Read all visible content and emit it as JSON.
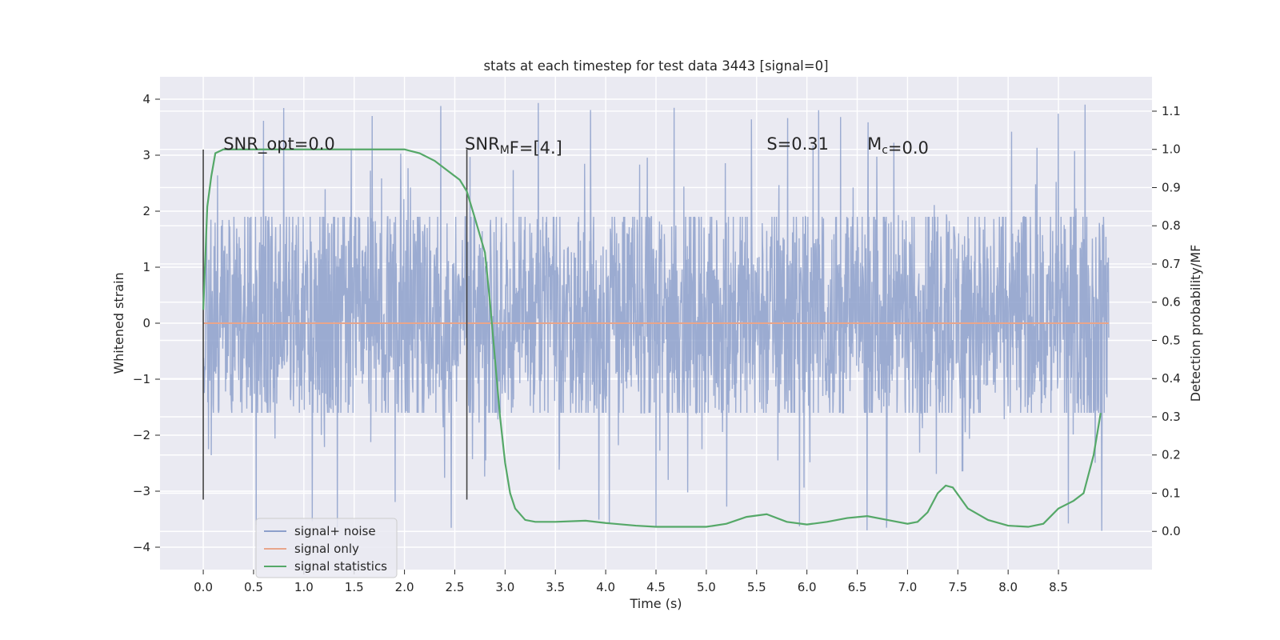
{
  "chart_data": {
    "type": "line",
    "title": "stats at each timestep for test data 3443 [signal=0]",
    "xlabel": "Time (s)",
    "ylabel": "Whitened strain",
    "y2label": "Detection probability/MF",
    "xlim": [
      -0.43,
      9.43
    ],
    "ylim": [
      -4.4,
      4.4
    ],
    "y2lim": [
      -0.1,
      1.19
    ],
    "xticks": [
      0.0,
      0.5,
      1.0,
      1.5,
      2.0,
      2.5,
      3.0,
      3.5,
      4.0,
      4.5,
      5.0,
      5.5,
      6.0,
      6.5,
      7.0,
      7.5,
      8.0,
      8.5
    ],
    "xtick_labels": [
      "0.0",
      "0.5",
      "1.0",
      "1.5",
      "2.0",
      "2.5",
      "3.0",
      "3.5",
      "4.0",
      "4.5",
      "5.0",
      "5.5",
      "6.0",
      "6.5",
      "7.0",
      "7.5",
      "8.0",
      "8.5"
    ],
    "yticks": [
      -4,
      -3,
      -2,
      -1,
      0,
      1,
      2,
      3,
      4
    ],
    "ytick_labels": [
      "−4",
      "−3",
      "−2",
      "−1",
      "0",
      "1",
      "2",
      "3",
      "4"
    ],
    "y2ticks": [
      0.0,
      0.1,
      0.2,
      0.3,
      0.4,
      0.5,
      0.6,
      0.7,
      0.8,
      0.9,
      1.0,
      1.1
    ],
    "y2tick_labels": [
      "0.0",
      "0.1",
      "0.2",
      "0.3",
      "0.4",
      "0.5",
      "0.6",
      "0.7",
      "0.8",
      "0.9",
      "1.0",
      "1.1"
    ],
    "series": [
      {
        "name": "signal+ noise",
        "color": "#8da0cb",
        "axis": "left",
        "x_range": [
          0.0,
          9.0
        ],
        "typical_envelope": [
          -1.6,
          1.9
        ],
        "peak_range": [
          -3.85,
          3.95
        ],
        "seed": 3443
      },
      {
        "name": "signal only",
        "color": "#e8a58b",
        "axis": "left",
        "x": [
          0.0,
          9.0
        ],
        "y": [
          0.0,
          0.0
        ]
      },
      {
        "name": "signal statistics",
        "color": "#55a868",
        "axis": "right",
        "x": [
          0.0,
          0.04,
          0.08,
          0.12,
          0.2,
          0.3,
          0.5,
          1.0,
          1.5,
          2.0,
          2.15,
          2.3,
          2.45,
          2.55,
          2.62,
          2.7,
          2.8,
          2.85,
          2.9,
          2.95,
          3.0,
          3.05,
          3.1,
          3.2,
          3.3,
          3.5,
          3.8,
          4.0,
          4.3,
          4.5,
          4.8,
          5.0,
          5.2,
          5.4,
          5.6,
          5.8,
          6.0,
          6.2,
          6.4,
          6.6,
          6.8,
          7.0,
          7.1,
          7.2,
          7.3,
          7.38,
          7.45,
          7.6,
          7.8,
          8.0,
          8.2,
          8.35,
          8.5,
          8.65,
          8.75,
          8.85,
          8.92
        ],
        "y": [
          0.58,
          0.85,
          0.93,
          0.99,
          1.0,
          1.0,
          1.0,
          1.0,
          1.0,
          1.0,
          0.99,
          0.97,
          0.94,
          0.92,
          0.89,
          0.82,
          0.73,
          0.6,
          0.45,
          0.3,
          0.18,
          0.1,
          0.06,
          0.03,
          0.025,
          0.025,
          0.028,
          0.022,
          0.015,
          0.012,
          0.012,
          0.012,
          0.02,
          0.038,
          0.045,
          0.025,
          0.018,
          0.025,
          0.035,
          0.04,
          0.03,
          0.02,
          0.025,
          0.05,
          0.1,
          0.12,
          0.115,
          0.06,
          0.03,
          0.015,
          0.012,
          0.02,
          0.06,
          0.08,
          0.1,
          0.2,
          0.31
        ]
      }
    ],
    "vlines": [
      0.0,
      2.62
    ],
    "vline_range": [
      -3.15,
      3.1
    ],
    "annotations": [
      {
        "text": "SNR_opt=0.0",
        "x": 0.2,
        "y": 3.1
      },
      {
        "text": "SNR<sub>M</sub>F=[4.]",
        "x": 2.6,
        "y": 3.1
      },
      {
        "text": "S=0.31",
        "x": 5.6,
        "y": 3.1
      },
      {
        "text": "M<sub>c</sub>=0.0",
        "x": 6.6,
        "y": 3.1
      }
    ],
    "annotation_texts": [
      "SNR_opt=0.0",
      "SNR_MF=[4.]",
      "S=0.31",
      "M_c=0.0"
    ],
    "grid": true,
    "legend_position": "lower-left",
    "legend": [
      "signal+ noise",
      "signal only",
      "signal statistics"
    ]
  }
}
